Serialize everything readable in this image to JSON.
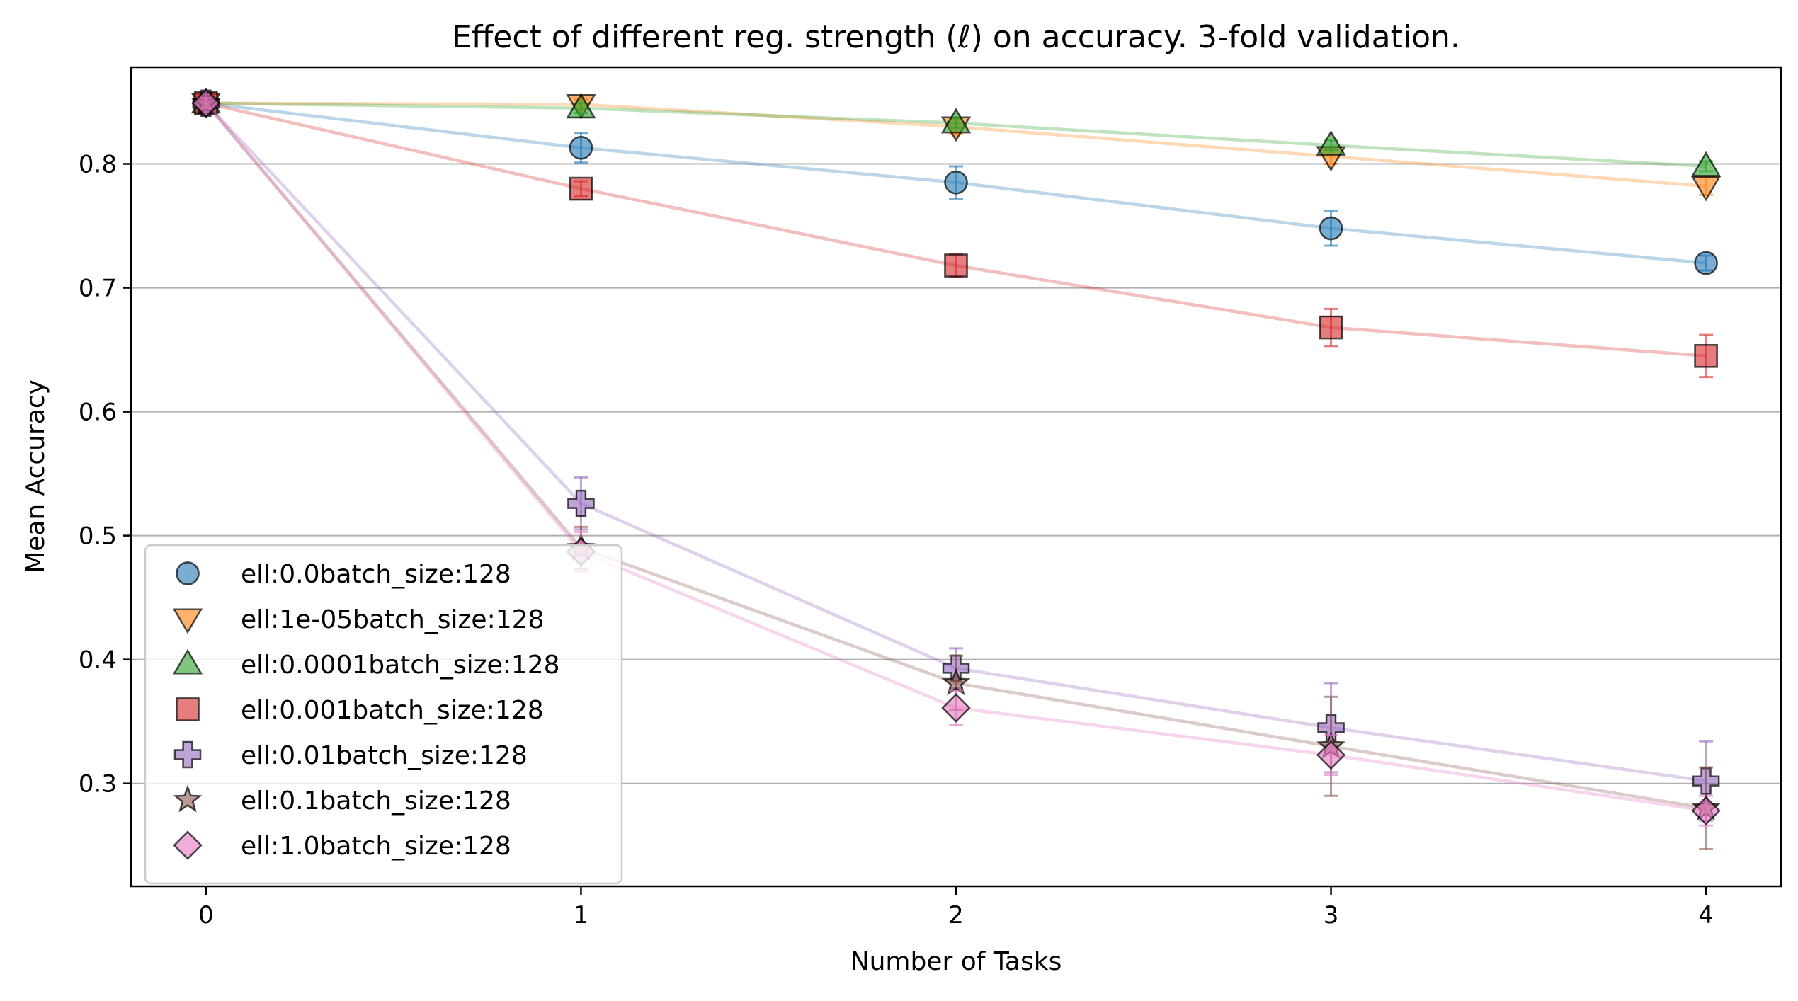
{
  "chart_data": {
    "type": "line",
    "title": "Effect of different reg. strength (ℓ) on accuracy. 3-fold validation.",
    "xlabel": "Number of Tasks",
    "ylabel": "Mean Accuracy",
    "x": [
      0,
      1,
      2,
      3,
      4
    ],
    "xlim": [
      -0.2,
      4.2
    ],
    "ylim": [
      0.217,
      0.878
    ],
    "x_ticks": [
      "0",
      "1",
      "2",
      "3",
      "4"
    ],
    "y_ticks": [
      "0.3",
      "0.4",
      "0.5",
      "0.6",
      "0.7",
      "0.8"
    ],
    "grid": "horizontal",
    "legend_position": "lower-left",
    "series": [
      {
        "name": "ell:0.0batch_size:128",
        "color": "#1f77b4",
        "marker": "circle",
        "values": [
          0.849,
          0.813,
          0.785,
          0.748,
          0.72
        ],
        "errors": [
          0.004,
          0.012,
          0.013,
          0.014,
          0.006
        ]
      },
      {
        "name": "ell:1e-05batch_size:128",
        "color": "#ff7f0e",
        "marker": "triangle-down",
        "values": [
          0.849,
          0.848,
          0.83,
          0.806,
          0.782
        ],
        "errors": [
          0.003,
          0.004,
          0.006,
          0.006,
          0.007
        ]
      },
      {
        "name": "ell:0.0001batch_size:128",
        "color": "#2ca02c",
        "marker": "triangle-up",
        "values": [
          0.849,
          0.845,
          0.833,
          0.815,
          0.798
        ],
        "errors": [
          0.003,
          0.004,
          0.004,
          0.004,
          0.004
        ]
      },
      {
        "name": "ell:0.001batch_size:128",
        "color": "#d62728",
        "marker": "square",
        "values": [
          0.849,
          0.78,
          0.718,
          0.668,
          0.645
        ],
        "errors": [
          0.004,
          0.006,
          0.009,
          0.015,
          0.017
        ]
      },
      {
        "name": "ell:0.01batch_size:128",
        "color": "#9467bd",
        "marker": "plus",
        "values": [
          0.849,
          0.526,
          0.393,
          0.345,
          0.302
        ],
        "errors": [
          0.004,
          0.021,
          0.016,
          0.036,
          0.032
        ]
      },
      {
        "name": "ell:0.1batch_size:128",
        "color": "#8c564b",
        "marker": "star",
        "values": [
          0.849,
          0.49,
          0.381,
          0.33,
          0.28
        ],
        "errors": [
          0.004,
          0.017,
          0.022,
          0.04,
          0.033
        ]
      },
      {
        "name": "ell:1.0batch_size:128",
        "color": "#e377c2",
        "marker": "diamond",
        "values": [
          0.849,
          0.487,
          0.361,
          0.323,
          0.278
        ],
        "errors": [
          0.004,
          0.016,
          0.014,
          0.016,
          0.012
        ]
      }
    ]
  }
}
